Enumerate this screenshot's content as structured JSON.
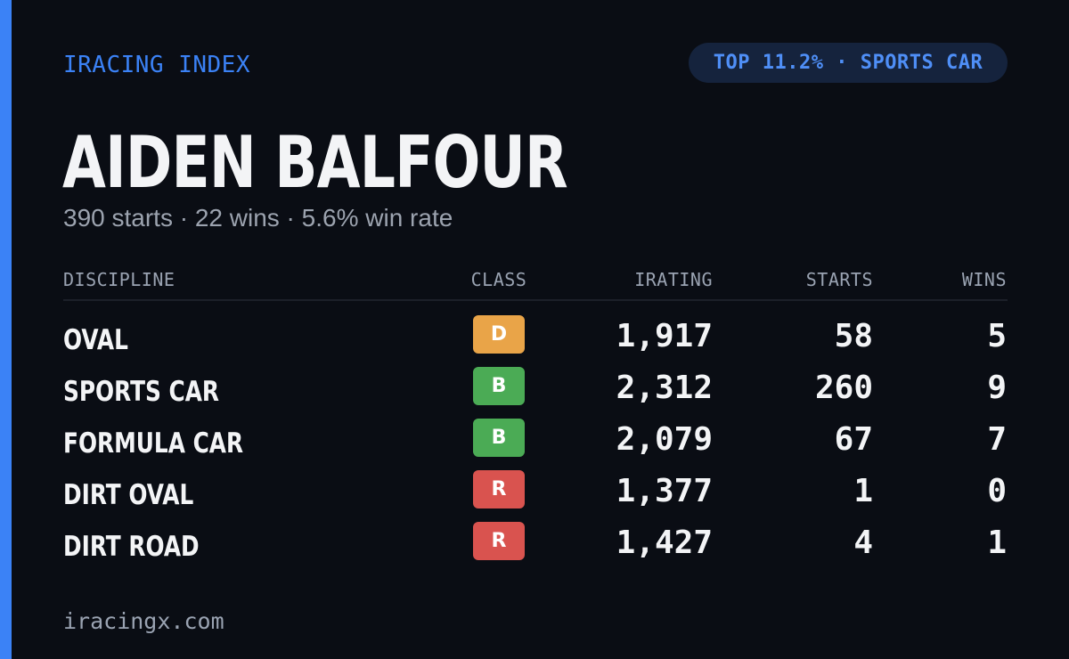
{
  "brand": "IRACING INDEX",
  "badge_top": "TOP 11.2% · SPORTS CAR",
  "driver": {
    "name": "AIDEN BALFOUR",
    "summary": "390 starts · 22 wins · 5.6% win rate"
  },
  "table": {
    "headers": {
      "discipline": "DISCIPLINE",
      "class": "CLASS",
      "irating": "IRATING",
      "starts": "STARTS",
      "wins": "WINS"
    },
    "rows": [
      {
        "discipline": "OVAL",
        "class": "D",
        "class_color": "#e9a448",
        "irating": "1,917",
        "starts": "58",
        "wins": "5"
      },
      {
        "discipline": "SPORTS CAR",
        "class": "B",
        "class_color": "#4bab55",
        "irating": "2,312",
        "starts": "260",
        "wins": "9"
      },
      {
        "discipline": "FORMULA CAR",
        "class": "B",
        "class_color": "#4bab55",
        "irating": "2,079",
        "starts": "67",
        "wins": "7"
      },
      {
        "discipline": "DIRT OVAL",
        "class": "R",
        "class_color": "#d9534f",
        "irating": "1,377",
        "starts": "1",
        "wins": "0"
      },
      {
        "discipline": "DIRT ROAD",
        "class": "R",
        "class_color": "#d9534f",
        "irating": "1,427",
        "starts": "4",
        "wins": "1"
      }
    ]
  },
  "footer": "iracingx.com",
  "colors": {
    "accent": "#3b82f6",
    "background": "#0a0d14"
  }
}
